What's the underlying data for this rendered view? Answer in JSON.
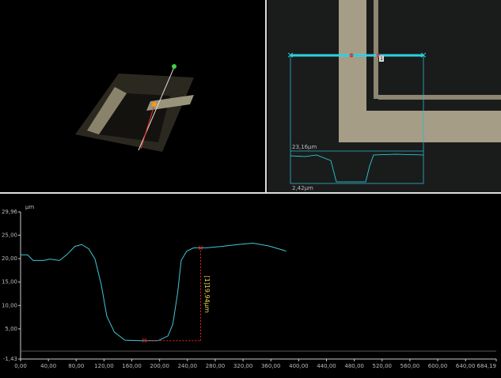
{
  "image_panel": {
    "height_label": "23,16µm",
    "base_label": "2,42µm",
    "marker_label": "1"
  },
  "chart_data": {
    "type": "line",
    "y_label": "µm",
    "xlim": [
      0,
      684.19
    ],
    "ylim": [
      -1.43,
      29.96
    ],
    "xticks": [
      {
        "value": 0,
        "label": "0,00"
      },
      {
        "value": 40,
        "label": "40,00"
      },
      {
        "value": 80,
        "label": "80,00"
      },
      {
        "value": 120,
        "label": "120,00"
      },
      {
        "value": 160,
        "label": "160,00"
      },
      {
        "value": 200,
        "label": "200,00"
      },
      {
        "value": 240,
        "label": "240,00"
      },
      {
        "value": 280,
        "label": "280,00"
      },
      {
        "value": 320,
        "label": "320,00"
      },
      {
        "value": 360,
        "label": "360,00"
      },
      {
        "value": 400,
        "label": "400,00"
      },
      {
        "value": 440,
        "label": "440,00"
      },
      {
        "value": 480,
        "label": "480,00"
      },
      {
        "value": 520,
        "label": "520,00"
      },
      {
        "value": 560,
        "label": "560,00"
      },
      {
        "value": 600,
        "label": "600,00"
      },
      {
        "value": 640,
        "label": "640,00"
      },
      {
        "value": 684.19,
        "label": "684,19"
      }
    ],
    "yticks": [
      {
        "value": -1.43,
        "label": "-1,43"
      },
      {
        "value": 5,
        "label": "5,00"
      },
      {
        "value": 10,
        "label": "10,00"
      },
      {
        "value": 15,
        "label": "15,00"
      },
      {
        "value": 20,
        "label": "20,00"
      },
      {
        "value": 25,
        "label": "25,00"
      },
      {
        "value": 29.96,
        "label": "29,96"
      }
    ],
    "x": [
      0,
      10,
      18,
      33,
      42,
      56,
      67,
      78,
      88,
      98,
      107,
      116,
      124,
      135,
      150,
      170,
      198,
      212,
      219,
      226,
      231,
      239,
      249,
      267,
      289,
      312,
      334,
      357,
      382
    ],
    "series": [
      {
        "color": "#3fc8d8",
        "values": [
          20.8,
          20.8,
          19.6,
          19.6,
          19.9,
          19.6,
          20.9,
          22.6,
          23.0,
          22.1,
          19.9,
          14.5,
          7.7,
          4.3,
          2.6,
          2.5,
          2.5,
          3.5,
          6.0,
          12.8,
          19.6,
          21.6,
          22.3,
          22.3,
          22.6,
          23.0,
          23.3,
          22.7,
          21.6
        ]
      }
    ],
    "cursors": [
      {
        "x": 178,
        "y": 2.5
      },
      {
        "x": 259,
        "y": 22.3
      }
    ],
    "annotation": "[1]19,94µm"
  }
}
